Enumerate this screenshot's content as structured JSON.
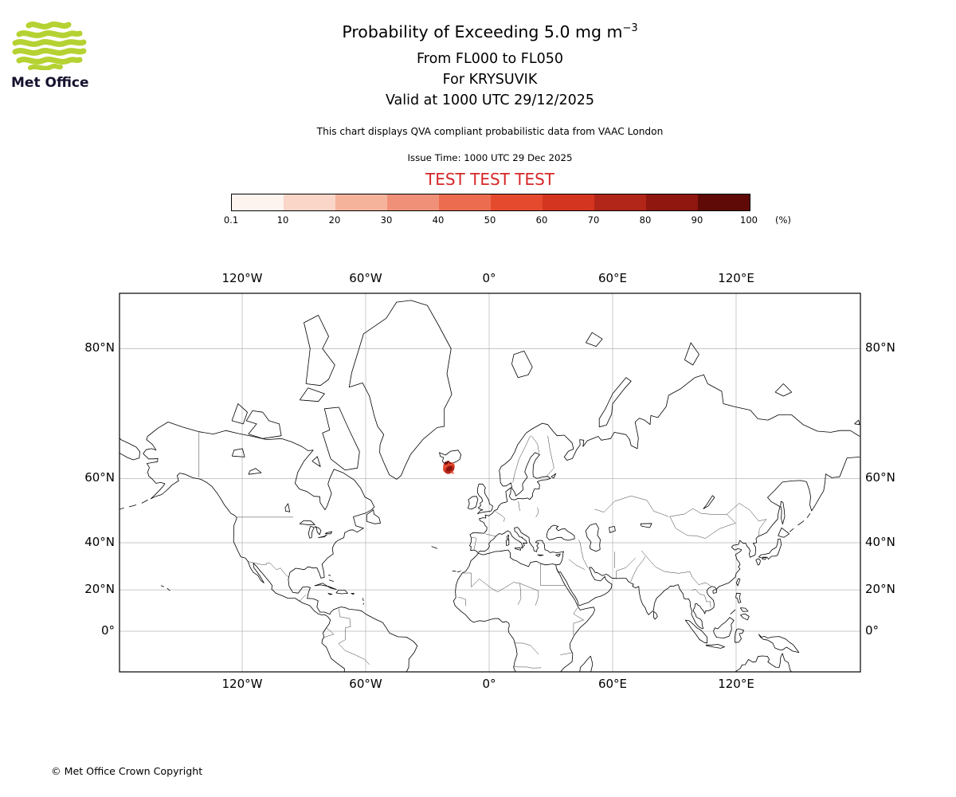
{
  "logo": {
    "text": "Met Office",
    "green": "#b5d233",
    "text_color": "#15122e"
  },
  "header": {
    "title_main": "Probability of Exceeding 5.0 mg m",
    "title_exp": "−3",
    "subtitle1": "From FL000 to FL050",
    "subtitle2": "For KRYSUVIK",
    "subtitle3": "Valid at 1000 UTC 29/12/2025",
    "note": "This chart displays QVA compliant probabilistic data from VAAC London",
    "issue_time": "Issue Time: 1000 UTC 29 Dec 2025",
    "test_banner": "TEST TEST TEST",
    "test_color": "#d62728"
  },
  "legend": {
    "labels": [
      "0.1",
      "10",
      "20",
      "30",
      "40",
      "50",
      "60",
      "70",
      "80",
      "90",
      "100"
    ],
    "unit": "(%)",
    "colors": [
      "#fdf4ef",
      "#f9d6c8",
      "#f5b39c",
      "#f19078",
      "#ec6c50",
      "#e64a2e",
      "#d43520",
      "#b22619",
      "#8f1710",
      "#5f0a06"
    ]
  },
  "map": {
    "lon_labels": [
      "120°W",
      "60°W",
      "0°",
      "60°E",
      "120°E"
    ],
    "lat_labels": [
      "80°N",
      "60°N",
      "40°N",
      "20°N",
      "0°"
    ],
    "ash_cloud": {
      "description": "Ash exceedance probability plume near Iceland (Krysuvik)",
      "colors": [
        "#e2482e",
        "#d63b24",
        "#b5271a",
        "#8a130c",
        "#6f0d08"
      ]
    }
  },
  "footer": {
    "copyright": "© Met Office Crown Copyright"
  }
}
